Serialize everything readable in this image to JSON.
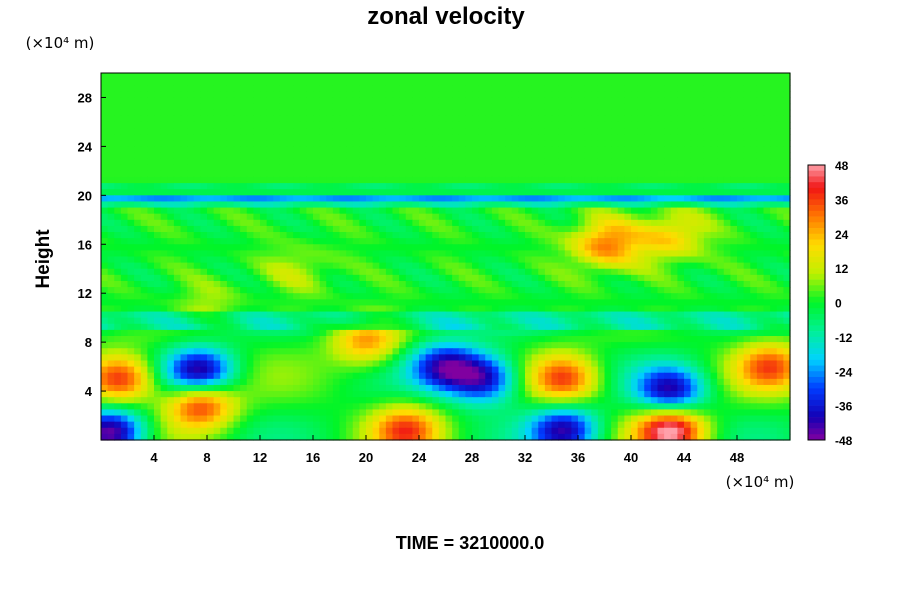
{
  "chart_data": {
    "type": "heatmap",
    "title": "zonal velocity",
    "ylabel": "Height",
    "xlabel": "",
    "x_unit": "(×10⁴ m)",
    "y_unit": "(×10⁴ m)",
    "xlim": [
      0,
      52
    ],
    "ylim": [
      0,
      30
    ],
    "x_ticks": [
      4,
      8,
      12,
      16,
      20,
      24,
      28,
      32,
      36,
      40,
      44,
      48
    ],
    "y_ticks": [
      4,
      8,
      12,
      16,
      20,
      24,
      28
    ],
    "colorbar": {
      "min": -48,
      "max": 48,
      "ticks": [
        48,
        36,
        24,
        12,
        0,
        -12,
        -24,
        -36,
        -48
      ]
    },
    "features": [
      {
        "x": 1.5,
        "y": 5,
        "value": 40
      },
      {
        "x": 0.8,
        "y": 0.6,
        "value": -48
      },
      {
        "x": 7.5,
        "y": 5.5,
        "value": -44
      },
      {
        "x": 7.5,
        "y": 3,
        "value": 40
      },
      {
        "x": 26,
        "y": 6,
        "value": -38
      },
      {
        "x": 29,
        "y": 5,
        "value": -40
      },
      {
        "x": 23,
        "y": 0.8,
        "value": 32
      },
      {
        "x": 35,
        "y": 5,
        "value": 34
      },
      {
        "x": 35,
        "y": 0.8,
        "value": -40
      },
      {
        "x": 43,
        "y": 4,
        "value": -40
      },
      {
        "x": 43,
        "y": 0.8,
        "value": 48
      },
      {
        "x": 50.5,
        "y": 6,
        "value": 30
      },
      {
        "x": 38,
        "y": 16,
        "value": 30
      },
      {
        "x": 43,
        "y": 16.6,
        "value": 22
      },
      {
        "x": 20,
        "y": 8,
        "value": 26
      },
      {
        "x": 15,
        "y": 14,
        "value": 10
      },
      {
        "x": 8,
        "y": 11,
        "value": 8
      }
    ],
    "bands": [
      {
        "y": 19.6,
        "value": -28
      },
      {
        "y": 20.6,
        "value": -6
      },
      {
        "y": 10,
        "value": -16
      },
      {
        "y": 9.2,
        "value": -10
      }
    ]
  },
  "footer": {
    "time_text": "TIME = 3210000.0"
  }
}
